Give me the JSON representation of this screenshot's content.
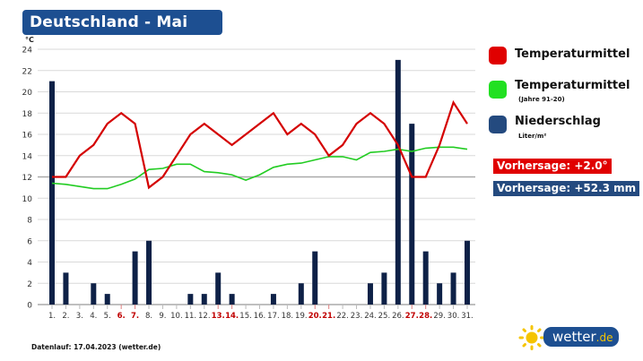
{
  "header": {
    "title": "Deutschland - Mai"
  },
  "legend": {
    "items": [
      {
        "label": "Temperaturmittel",
        "sub": "",
        "color": "#e00000"
      },
      {
        "label": "Temperaturmittel",
        "sub": "(Jahre 91-20)",
        "color": "#22e022"
      },
      {
        "label": "Niederschlag",
        "sub": "Liter/m²",
        "color": "#244a7f"
      }
    ]
  },
  "forecast": {
    "temperature": {
      "label": "Vorhersage: +2.0°",
      "color": "#e00000"
    },
    "precipitation": {
      "label": "Vorhersage: +52.3 mm",
      "color": "#244a7f"
    }
  },
  "footer": {
    "text": "Datenlauf: 17.04.2023 (wetter.de)"
  },
  "logo": {
    "name": "wetter",
    "tld": ".de"
  },
  "chart_data": {
    "type": "bar+line",
    "title": "Deutschland - Mai",
    "ylabel": "°C",
    "ylim": [
      0,
      24
    ],
    "yticks": [
      0,
      2,
      4,
      6,
      8,
      10,
      12,
      14,
      16,
      18,
      20,
      22,
      24
    ],
    "grid": true,
    "legend_position": "right",
    "categories": [
      "1.",
      "2.",
      "3.",
      "4.",
      "5.",
      "6.",
      "7.",
      "8.",
      "9.",
      "10.",
      "11.",
      "12.",
      "13.",
      "14.",
      "15.",
      "16.",
      "17.",
      "18.",
      "19.",
      "20.",
      "21.",
      "22.",
      "23.",
      "24.",
      "25.",
      "26.",
      "27.",
      "28.",
      "29.",
      "30.",
      "31."
    ],
    "weekend_days": [
      "6.",
      "7.",
      "13.",
      "14.",
      "20.",
      "21.",
      "27.",
      "28."
    ],
    "series": [
      {
        "name": "Temperaturmittel",
        "type": "line",
        "color": "#d40000",
        "values": [
          12,
          12,
          14,
          15,
          17,
          18,
          17,
          11,
          12,
          14,
          16,
          17,
          16,
          15,
          16,
          17,
          18,
          16,
          17,
          16,
          14,
          15,
          17,
          18,
          17,
          15,
          12,
          12,
          15,
          19,
          17
        ]
      },
      {
        "name": "Temperaturmittel (Jahre 91-20)",
        "type": "line",
        "color": "#22cc22",
        "values": [
          11.4,
          11.3,
          11.1,
          10.9,
          10.9,
          11.3,
          11.8,
          12.7,
          12.8,
          13.2,
          13.2,
          12.5,
          12.4,
          12.2,
          11.7,
          12.2,
          12.9,
          13.2,
          13.3,
          13.6,
          13.9,
          13.9,
          13.6,
          14.3,
          14.4,
          14.6,
          14.4,
          14.7,
          14.8,
          14.8,
          14.6
        ]
      },
      {
        "name": "Niederschlag (Liter/m²)",
        "type": "bar",
        "color": "#0e2147",
        "values": [
          21,
          3,
          0,
          2,
          1,
          0,
          5,
          6,
          0,
          0,
          1,
          1,
          3,
          1,
          0,
          0,
          1,
          0,
          2,
          5,
          0,
          0,
          0,
          2,
          3,
          23,
          17,
          5,
          2,
          3,
          6
        ]
      }
    ],
    "annotations": [
      "Vorhersage: +2.0°",
      "Vorhersage: +52.3 mm"
    ]
  }
}
